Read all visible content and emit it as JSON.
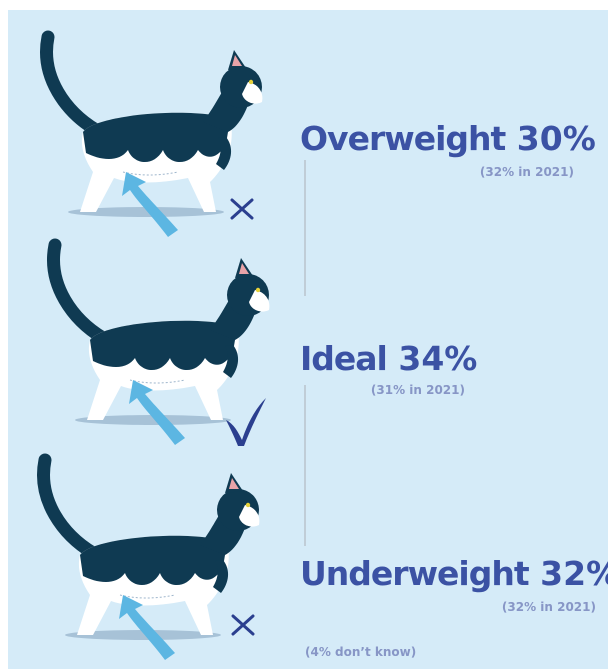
{
  "items": [
    {
      "label": "Overweight",
      "value": "30%",
      "previous": "(32% in 2021)"
    },
    {
      "label": "Ideal",
      "value": "34%",
      "previous": "(31% in 2021)"
    },
    {
      "label": "Underweight",
      "value": "32%",
      "previous": "(32% in 2021)"
    }
  ],
  "footnote": "(4% don’t know)"
}
